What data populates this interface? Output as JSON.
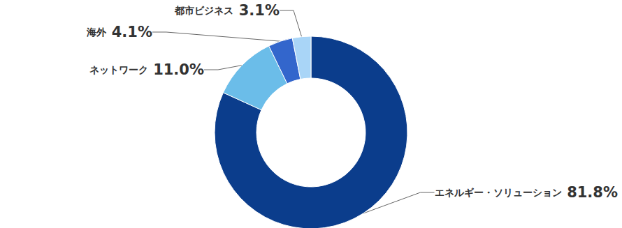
{
  "chart_data": {
    "type": "pie",
    "categories": [
      "エネルギー・ソリューション",
      "ネットワーク",
      "海外",
      "都市ビジネス"
    ],
    "values": [
      81.8,
      11.0,
      4.1,
      3.1
    ],
    "value_labels": [
      "81.8%",
      "11.0%",
      "4.1%",
      "3.1%"
    ],
    "colors": [
      "#0b3d8c",
      "#6bbde9",
      "#3366cc",
      "#a9d5f7"
    ],
    "data_labels": true
  }
}
